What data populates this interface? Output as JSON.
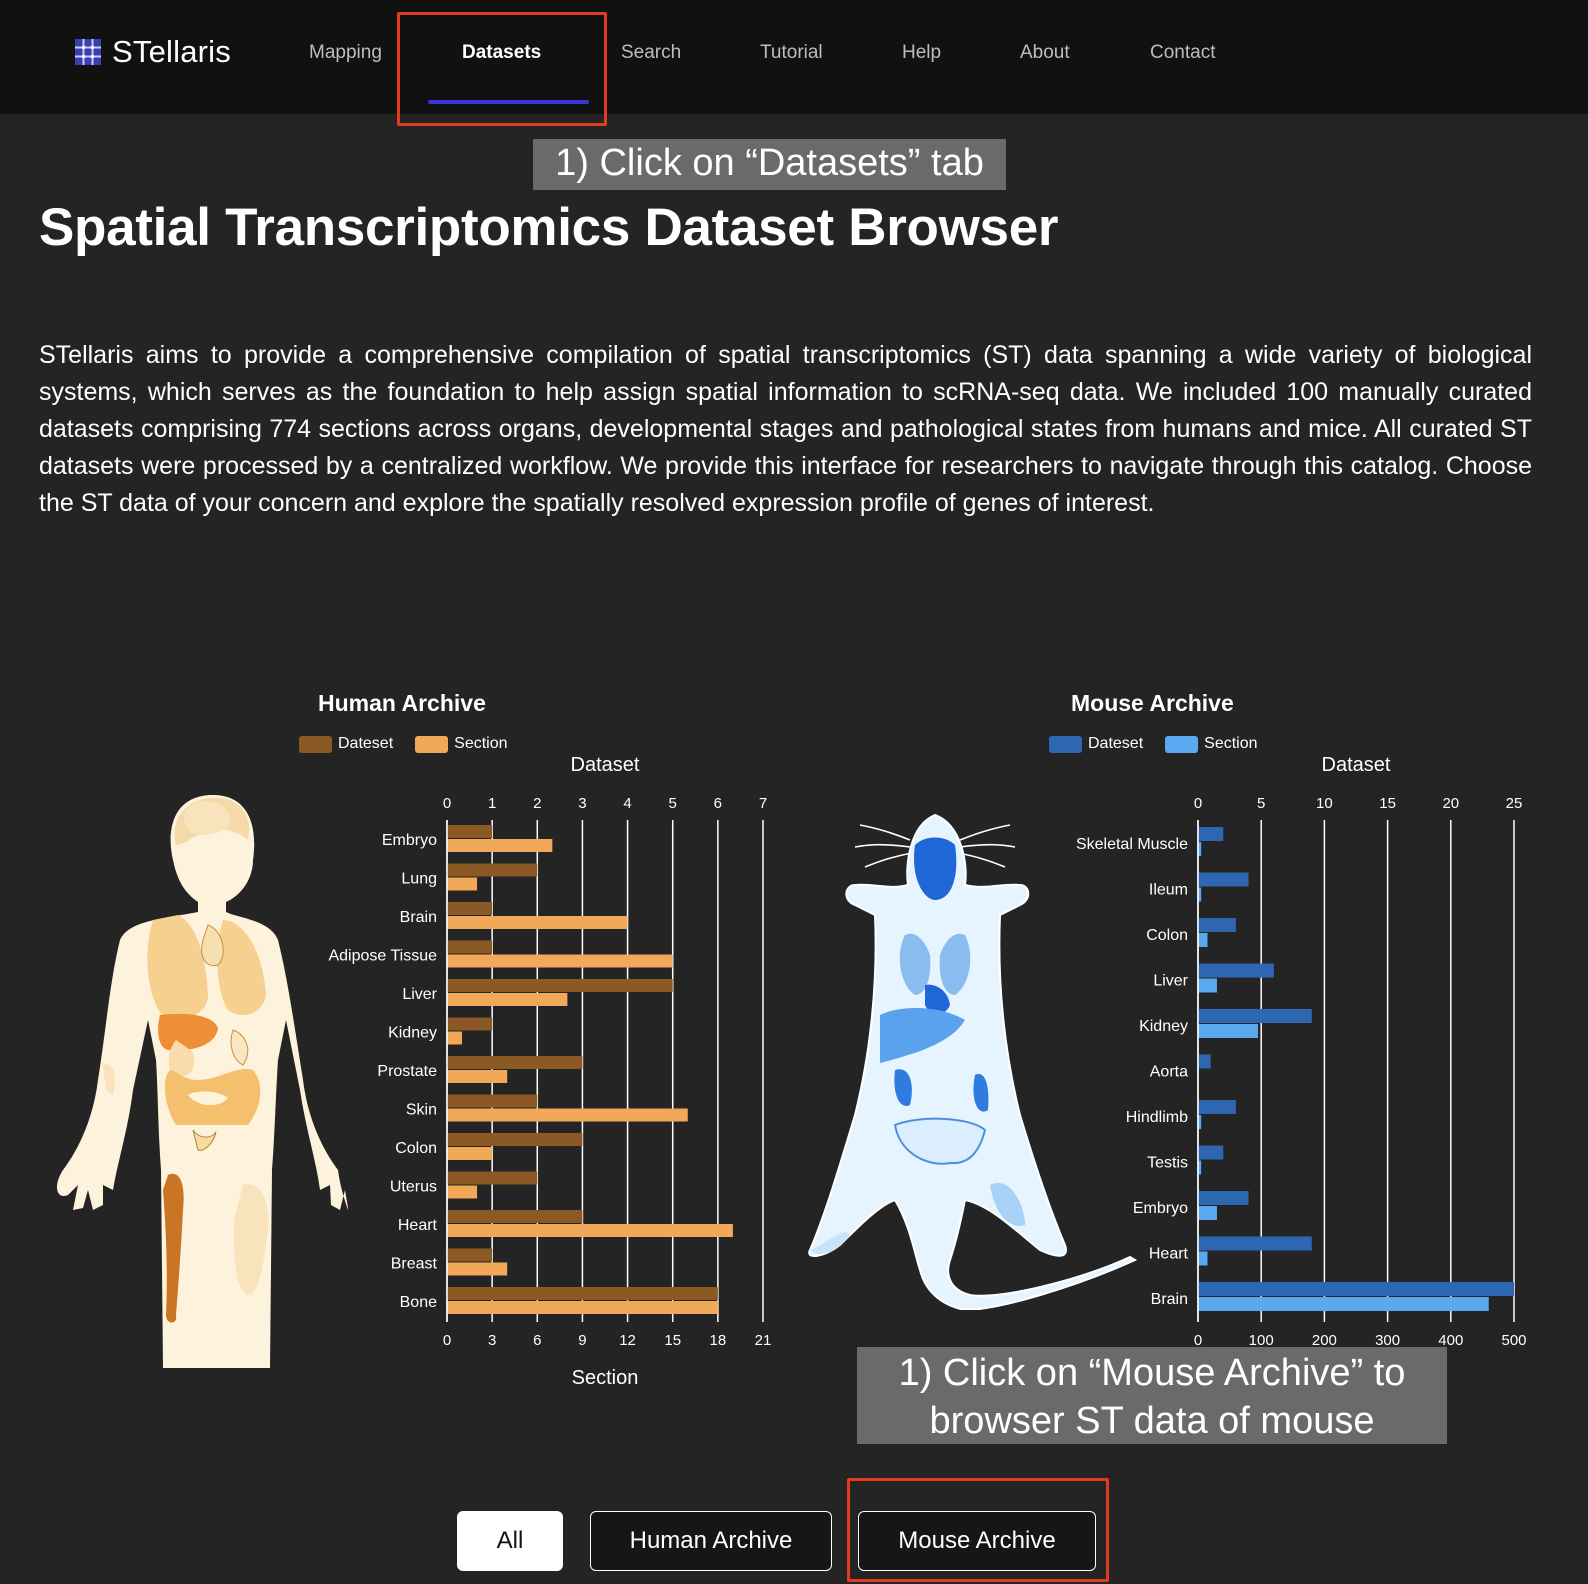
{
  "header": {
    "logo_text": "STellaris",
    "nav": [
      {
        "label": "Mapping"
      },
      {
        "label": "Datasets",
        "active": true
      },
      {
        "label": "Search"
      },
      {
        "label": "Tutorial"
      },
      {
        "label": "Help"
      },
      {
        "label": "About"
      },
      {
        "label": "Contact"
      }
    ]
  },
  "annotations": {
    "datasets_tab": "1) Click on “Datasets” tab",
    "mouse_archive_line1": "1) Click on “Mouse Archive” to",
    "mouse_archive_line2": "browser ST data of mouse"
  },
  "main": {
    "title": "Spatial Transcriptomics Dataset Browser",
    "intro": "STellaris aims to provide a comprehensive compilation of spatial transcriptomics (ST) data spanning a wide variety of biological systems, which serves as the foundation to help assign spatial information to scRNA-seq data. We included 100 manually curated datasets comprising 774 sections across organs, developmental stages and pathological states from humans and mice. All curated ST datasets were processed by a centralized workflow. We provide this interface for researchers to navigate through this catalog. Choose the ST data of your concern and explore the spatially resolved expression profile of genes of interest."
  },
  "filters": {
    "all": "All",
    "human": "Human Archive",
    "mouse": "Mouse Archive"
  },
  "chart_data": [
    {
      "type": "bar",
      "orientation": "horizontal",
      "title": "Human Archive",
      "legend": [
        "Dateset",
        "Section"
      ],
      "top_axis_label": "Dataset",
      "bottom_axis_label": "Section",
      "dataset_ticks": [
        0,
        1,
        2,
        3,
        4,
        5,
        6,
        7
      ],
      "section_ticks": [
        0,
        3,
        6,
        9,
        12,
        15,
        18,
        21
      ],
      "dataset_range": [
        0,
        7
      ],
      "section_range": [
        0,
        21
      ],
      "categories": [
        "Embryo",
        "Lung",
        "Brain",
        "Adipose Tissue",
        "Liver",
        "Kidney",
        "Prostate",
        "Skin",
        "Colon",
        "Uterus",
        "Heart",
        "Breast",
        "Bone"
      ],
      "series": [
        {
          "name": "Dateset",
          "axis": "top",
          "color": "#8b5a24",
          "values": [
            1,
            2,
            1,
            1,
            5,
            1,
            3,
            2,
            3,
            2,
            3,
            1,
            6
          ]
        },
        {
          "name": "Section",
          "axis": "bottom",
          "color": "#f1a858",
          "values": [
            7,
            2,
            12,
            15,
            8,
            1,
            4,
            16,
            3,
            2,
            19,
            4,
            18
          ]
        }
      ]
    },
    {
      "type": "bar",
      "orientation": "horizontal",
      "title": "Mouse Archive",
      "legend": [
        "Dateset",
        "Section"
      ],
      "top_axis_label": "Dataset",
      "dataset_ticks": [
        0,
        5,
        10,
        15,
        20,
        25
      ],
      "section_ticks": [
        0,
        100,
        200,
        300,
        400,
        500
      ],
      "dataset_range": [
        0,
        25
      ],
      "section_range": [
        0,
        500
      ],
      "categories": [
        "Skeletal Muscle",
        "Ileum",
        "Colon",
        "Liver",
        "Kidney",
        "Aorta",
        "Hindlimb",
        "Testis",
        "Embryo",
        "Heart",
        "Brain"
      ],
      "series": [
        {
          "name": "Dateset",
          "axis": "top",
          "color": "#2e67b1",
          "values": [
            2,
            4,
            3,
            6,
            9,
            1,
            3,
            2,
            4,
            9,
            25
          ]
        },
        {
          "name": "Section",
          "axis": "bottom",
          "color": "#5aa8ef",
          "values": [
            5,
            5,
            15,
            30,
            95,
            0,
            5,
            5,
            30,
            15,
            460
          ]
        }
      ]
    }
  ]
}
